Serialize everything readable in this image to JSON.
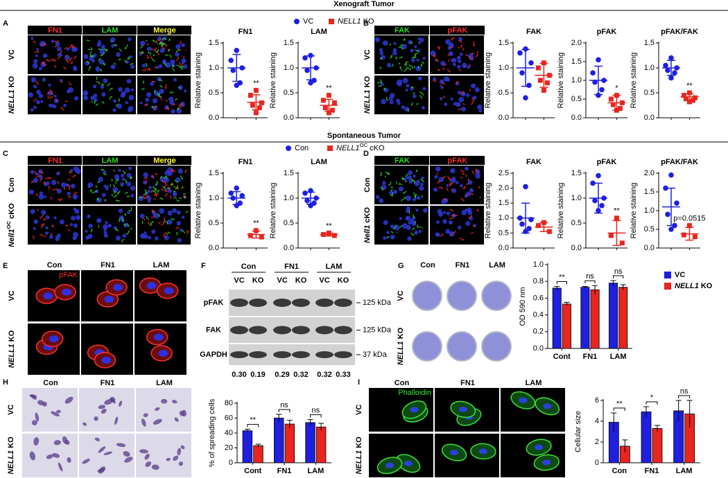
{
  "sections": [
    "Xenograft Tumor",
    "Spontaneous Tumor"
  ],
  "panel_letters": [
    "A",
    "B",
    "C",
    "D",
    "E",
    "F",
    "G",
    "H",
    "I"
  ],
  "legends": [
    [
      {
        "label": "VC",
        "color": "#1f1fe0",
        "shape": "circle"
      },
      {
        "label": {
          "gene": "NELL1",
          "rest": "KO"
        },
        "color": "#e8251f",
        "shape": "square"
      }
    ],
    [
      {
        "label": "Con",
        "color": "#1f1fe0",
        "shape": "circle"
      },
      {
        "label": {
          "gene": "NELL1",
          "sup": "OC",
          "rest": "cKO"
        },
        "color": "#e8251f",
        "shape": "square"
      }
    ]
  ],
  "image_grids": [
    {
      "header": "dark",
      "kind": "fluorescence",
      "columns": [
        {
          "label": "FN1",
          "color": "#ff2b2b"
        },
        {
          "label": "LAM",
          "color": "#2bdc2b"
        },
        {
          "label": "Merge",
          "color": "#ffff30"
        }
      ],
      "rows": [
        "VC",
        {
          "gene": "NELL1",
          "rest": "KO"
        }
      ]
    },
    {
      "header": "dark",
      "kind": "fluorescence",
      "columns": [
        {
          "label": "FAK",
          "color": "#2bdc2b"
        },
        {
          "label": "pFAK",
          "color": "#ff2b2b"
        }
      ],
      "rows": [
        "VC",
        {
          "gene": "NELL1",
          "rest": "KO"
        }
      ]
    },
    {
      "header": "dark",
      "kind": "fluorescence",
      "columns": [
        {
          "label": "FN1",
          "color": "#ff2b2b"
        },
        {
          "label": "LAM",
          "color": "#2bdc2b"
        },
        {
          "label": "Merge",
          "color": "#ffff30"
        }
      ],
      "rows": [
        "Con",
        {
          "gene": "Nell1",
          "sup": "OC",
          "rest": "cKO"
        }
      ]
    },
    {
      "header": "dark",
      "kind": "fluorescence",
      "columns": [
        {
          "label": "FAK",
          "color": "#2bdc2b"
        },
        {
          "label": "pFAK",
          "color": "#ff2b2b"
        }
      ],
      "rows": [
        "Con",
        {
          "gene": "Nell1",
          "rest": "cKO"
        }
      ]
    },
    {
      "header": "plain",
      "kind": "pfak-cells",
      "columns": [
        {
          "label": "Con"
        },
        {
          "label": "FN1"
        },
        {
          "label": "LAM"
        }
      ],
      "rows": [
        "VC",
        {
          "gene": "NELL1",
          "rest": "KO"
        }
      ],
      "inset": {
        "label": "pFAK",
        "color": "#ff2b2b"
      }
    },
    {
      "header": "plain",
      "kind": "plates",
      "columns": [
        {
          "label": "Con"
        },
        {
          "label": "FN1"
        },
        {
          "label": "LAM"
        }
      ],
      "rows": [
        "VC",
        {
          "gene": "NELL1",
          "rest": "KO"
        }
      ]
    },
    {
      "header": "plain",
      "kind": "stained-cells",
      "columns": [
        {
          "label": "Con"
        },
        {
          "label": "FN1"
        },
        {
          "label": "LAM"
        }
      ],
      "rows": [
        "VC",
        {
          "gene": "NELL1",
          "rest": "KO"
        }
      ]
    },
    {
      "header": "plain",
      "kind": "phalloidin",
      "columns": [
        {
          "label": "Con"
        },
        {
          "label": "FN1"
        },
        {
          "label": "LAM"
        }
      ],
      "rows": [
        "VC",
        {
          "gene": "NELL1",
          "rest": "KO"
        }
      ],
      "inset": {
        "label": "Phalloidin",
        "color": "#3ee03e"
      }
    }
  ],
  "blot": {
    "groups": [
      "Con",
      "FN1",
      "LAM"
    ],
    "lanes": [
      "VC",
      "KO",
      "VC",
      "KO",
      "VC",
      "KO"
    ],
    "rows": [
      "pFAK",
      "FAK",
      "GAPDH"
    ],
    "sizes": [
      "125 kDa",
      "125 kDa",
      "37 kDa"
    ],
    "ratios": [
      "0.30",
      "0.19",
      "0.29",
      "0.32",
      "0.32",
      "0.33"
    ]
  },
  "chart_data": [
    {
      "type": "dot",
      "title": "FN1",
      "ylabel": "Relative staining",
      "ylim": [
        0,
        1.5
      ],
      "yticks": [
        {
          "value": 0,
          "label": "0.0"
        },
        0.5,
        {
          "value": 1,
          "label": "1.0"
        },
        1.5
      ],
      "annotation": "**",
      "series": [
        {
          "color": "#1f1fe0",
          "marker": "circle",
          "values": [
            1.35,
            1.15,
            1.0,
            0.95,
            0.7,
            0.65
          ],
          "mean": 1.0,
          "sd": 0.27
        },
        {
          "color": "#e8251f",
          "marker": "square",
          "values": [
            0.55,
            0.45,
            0.3,
            0.25,
            0.2,
            0.1
          ],
          "mean": 0.31,
          "sd": 0.15
        }
      ]
    },
    {
      "type": "dot",
      "title": "LAM",
      "ylabel": "Relative staining",
      "ylim": [
        0,
        1.5
      ],
      "yticks": [
        {
          "value": 0,
          "label": "0.0"
        },
        0.5,
        {
          "value": 1,
          "label": "1.0"
        },
        1.5
      ],
      "annotation": "**",
      "series": [
        {
          "color": "#1f1fe0",
          "marker": "circle",
          "values": [
            1.25,
            1.2,
            1.0,
            0.95,
            0.75,
            0.7
          ],
          "mean": 1.0,
          "sd": 0.24
        },
        {
          "color": "#e8251f",
          "marker": "square",
          "values": [
            0.45,
            0.35,
            0.3,
            0.2,
            0.15,
            0.1
          ],
          "mean": 0.25,
          "sd": 0.12
        }
      ]
    },
    {
      "type": "dot",
      "title": "FAK",
      "ylabel": "Relative staining",
      "ylim": [
        0,
        1.5
      ],
      "yticks": [
        {
          "value": 0,
          "label": "0.0"
        },
        0.5,
        {
          "value": 1,
          "label": "1.0"
        },
        1.5
      ],
      "series": [
        {
          "color": "#1f1fe0",
          "marker": "circle",
          "values": [
            1.38,
            1.3,
            1.1,
            0.9,
            0.65,
            0.4
          ],
          "mean": 1.0,
          "sd": 0.37
        },
        {
          "color": "#e8251f",
          "marker": "square",
          "values": [
            1.1,
            1.0,
            0.85,
            0.75,
            0.7,
            0.55
          ],
          "mean": 0.85,
          "sd": 0.24
        }
      ]
    },
    {
      "type": "dot",
      "title": "pFAK",
      "ylabel": "Relative staining",
      "ylim": [
        0,
        2
      ],
      "yticks": [
        {
          "value": 0,
          "label": "0.0"
        },
        0.5,
        {
          "value": 1,
          "label": "1.0"
        },
        1.5,
        {
          "value": 2,
          "label": "2.0"
        }
      ],
      "annotation": "*",
      "series": [
        {
          "color": "#1f1fe0",
          "marker": "circle",
          "values": [
            1.55,
            1.2,
            1.0,
            0.95,
            0.75,
            0.6
          ],
          "mean": 1.0,
          "sd": 0.38
        },
        {
          "color": "#e8251f",
          "marker": "square",
          "values": [
            0.6,
            0.5,
            0.4,
            0.35,
            0.25,
            0.2
          ],
          "mean": 0.4,
          "sd": 0.2
        }
      ]
    },
    {
      "type": "dot",
      "title": "pFAK/FAK",
      "ylabel": "Relative staining",
      "ylim": [
        0,
        1.5
      ],
      "yticks": [
        {
          "value": 0,
          "label": "0.0"
        },
        0.5,
        {
          "value": 1,
          "label": "1.0"
        },
        1.5
      ],
      "annotation": "**",
      "series": [
        {
          "color": "#1f1fe0",
          "marker": "circle",
          "values": [
            1.2,
            1.05,
            1.0,
            0.95,
            0.9,
            0.8
          ],
          "mean": 1.0,
          "sd": 0.15
        },
        {
          "color": "#e8251f",
          "marker": "square",
          "values": [
            0.5,
            0.45,
            0.4,
            0.38,
            0.35,
            0.32
          ],
          "mean": 0.42,
          "sd": 0.06
        }
      ]
    },
    {
      "type": "dot",
      "title": "FN1",
      "ylabel": "Relative staining",
      "ylim": [
        0,
        1.5
      ],
      "yticks": [
        {
          "value": 0,
          "label": "0.0"
        },
        0.5,
        {
          "value": 1,
          "label": "1.0"
        },
        1.5
      ],
      "annotation": "**",
      "series": [
        {
          "color": "#1f1fe0",
          "marker": "circle",
          "values": [
            1.2,
            1.1,
            1.05,
            1.0,
            0.9,
            0.85
          ],
          "mean": 1.0,
          "sd": 0.13
        },
        {
          "color": "#e8251f",
          "marker": "square",
          "values": [
            0.35,
            0.25,
            0.22
          ],
          "mean": 0.27,
          "sd": 0.07
        }
      ]
    },
    {
      "type": "dot",
      "title": "LAM",
      "ylabel": "Relative staining",
      "ylim": [
        0,
        1.5
      ],
      "yticks": [
        {
          "value": 0,
          "label": "0.0"
        },
        0.5,
        {
          "value": 1,
          "label": "1.0"
        },
        1.5
      ],
      "annotation": "**",
      "series": [
        {
          "color": "#1f1fe0",
          "marker": "circle",
          "values": [
            1.15,
            1.1,
            1.0,
            0.95,
            0.9,
            0.85
          ],
          "mean": 1.0,
          "sd": 0.12
        },
        {
          "color": "#e8251f",
          "marker": "square",
          "values": [
            0.3,
            0.27,
            0.25
          ],
          "mean": 0.27,
          "sd": 0.03
        }
      ]
    },
    {
      "type": "dot",
      "title": "FAK",
      "ylabel": "Relative staining",
      "ylim": [
        0,
        2.5
      ],
      "yticks": [
        {
          "value": 0,
          "label": "0.0"
        },
        0.5,
        {
          "value": 1,
          "label": "1.0"
        },
        1.5,
        {
          "value": 2,
          "label": "2.0"
        },
        2.5
      ],
      "series": [
        {
          "color": "#1f1fe0",
          "marker": "circle",
          "values": [
            2.05,
            1.0,
            0.95,
            0.8,
            0.65,
            0.55
          ],
          "mean": 1.0,
          "sd": 0.5
        },
        {
          "color": "#e8251f",
          "marker": "square",
          "values": [
            0.85,
            0.75,
            0.55
          ],
          "mean": 0.7,
          "sd": 0.15
        }
      ]
    },
    {
      "type": "dot",
      "title": "pFAK",
      "ylabel": "Relative staining",
      "ylim": [
        0,
        1.5
      ],
      "yticks": [
        {
          "value": 0,
          "label": "0.0"
        },
        0.5,
        {
          "value": 1,
          "label": "1.0"
        },
        1.5
      ],
      "annotation": "**",
      "series": [
        {
          "color": "#1f1fe0",
          "marker": "circle",
          "values": [
            1.45,
            1.3,
            1.0,
            0.95,
            0.85,
            0.75
          ],
          "mean": 1.0,
          "sd": 0.3
        },
        {
          "color": "#e8251f",
          "marker": "square",
          "values": [
            0.6,
            0.25,
            0.1
          ],
          "mean": 0.3,
          "sd": 0.25
        }
      ]
    },
    {
      "type": "dot",
      "title": "pFAK/FAK",
      "ylabel": "Relative staining",
      "ylim": [
        0,
        2
      ],
      "yticks": [
        {
          "value": 0,
          "label": "0.0"
        },
        0.5,
        {
          "value": 1,
          "label": "1.0"
        },
        1.5,
        {
          "value": 2,
          "label": "2.0"
        }
      ],
      "annotation": "p=0.0515",
      "series": [
        {
          "color": "#1f1fe0",
          "marker": "circle",
          "values": [
            1.95,
            1.6,
            1.2,
            0.9,
            0.6,
            0.5
          ],
          "mean": 1.1,
          "sd": 0.5
        },
        {
          "color": "#e8251f",
          "marker": "square",
          "values": [
            0.6,
            0.35,
            0.3
          ],
          "mean": 0.38,
          "sd": 0.17
        }
      ]
    },
    {
      "type": "bar",
      "ylabel": "OD 590 nm",
      "categories": [
        "Cont",
        "FN1",
        "LAM"
      ],
      "ylim": [
        0,
        1
      ],
      "yticks": [
        {
          "value": 0,
          "label": "0.0"
        },
        0.2,
        0.4,
        0.6,
        0.8,
        {
          "value": 1,
          "label": "1.0"
        }
      ],
      "significance": [
        "**",
        "ns",
        "ns"
      ],
      "series": [
        {
          "name": "VC",
          "color": "#1f1fe0",
          "values": [
            0.72,
            0.73,
            0.78
          ],
          "errors": [
            0.02,
            0.01,
            0.03
          ]
        },
        {
          "name": {
            "gene": "NELL1",
            "rest": "KO"
          },
          "color": "#e8251f",
          "values": [
            0.53,
            0.7,
            0.73
          ],
          "errors": [
            0.02,
            0.05,
            0.03
          ]
        }
      ]
    },
    {
      "type": "bar",
      "ylabel": "% of spreading cells",
      "categories": [
        "Cont",
        "FN1",
        "LAM"
      ],
      "ylim": [
        0,
        80
      ],
      "yticks": [
        0,
        20,
        40,
        60,
        80
      ],
      "significance": [
        "**",
        "ns",
        "ns"
      ],
      "series": [
        {
          "color": "#1f1fe0",
          "values": [
            43,
            60,
            54
          ],
          "errors": [
            2,
            5,
            4
          ]
        },
        {
          "color": "#e8251f",
          "values": [
            23,
            52,
            48
          ],
          "errors": [
            2,
            5,
            5
          ]
        }
      ]
    },
    {
      "type": "bar",
      "ylabel": "Cellular size",
      "categories": [
        "Con",
        "FN1",
        "LAM"
      ],
      "ylim": [
        0,
        6
      ],
      "yticks": [
        0,
        2,
        4,
        6
      ],
      "significance": [
        "**",
        "*",
        "ns"
      ],
      "series": [
        {
          "color": "#1f1fe0",
          "values": [
            3.9,
            4.9,
            5.0
          ],
          "errors": [
            0.9,
            0.5,
            1.0
          ]
        },
        {
          "color": "#e8251f",
          "values": [
            1.6,
            3.3,
            4.7
          ],
          "errors": [
            0.6,
            0.3,
            1.3
          ]
        }
      ]
    }
  ]
}
